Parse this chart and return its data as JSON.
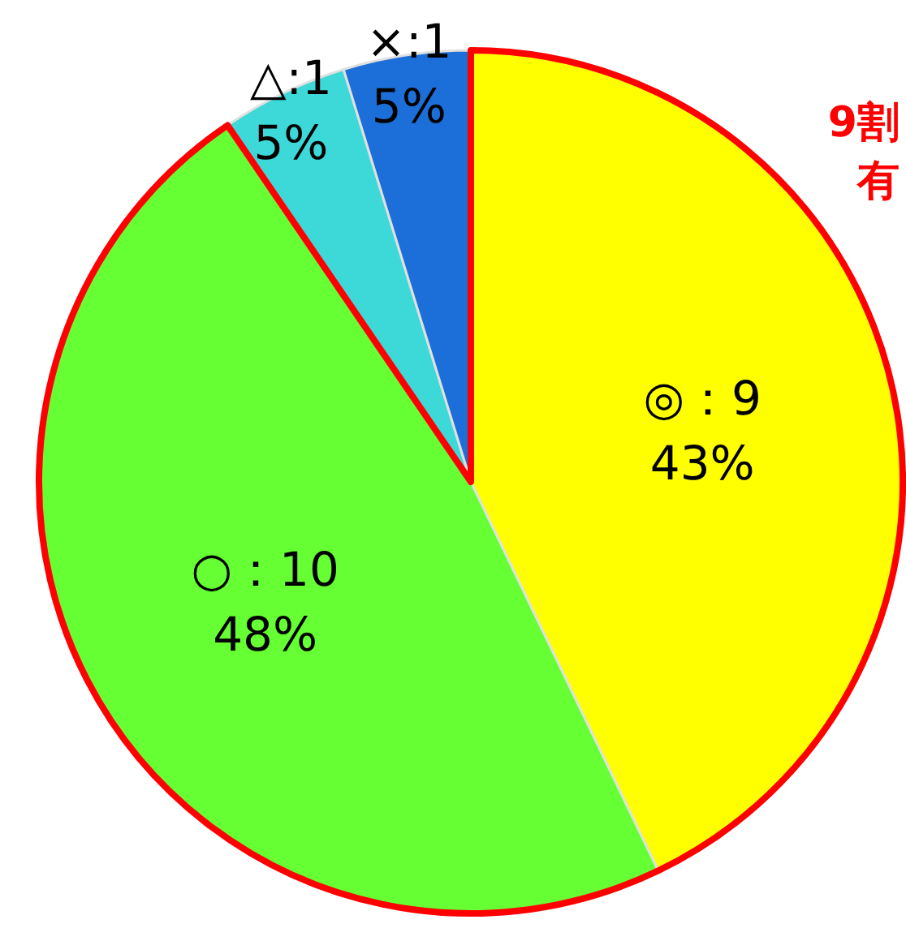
{
  "chart_data": {
    "type": "pie",
    "categories": [
      "◎",
      "○",
      "△",
      "×"
    ],
    "values": [
      9,
      10,
      1,
      1
    ],
    "colors": [
      "#ffff00",
      "#66ff33",
      "#3dd8d8",
      "#1c6fd8"
    ],
    "value_labels": [
      "：9\n43%",
      "：10\n48%",
      ":1\n5%",
      ":1\n5%"
    ],
    "annotations": [
      "9割",
      "有"
    ]
  }
}
